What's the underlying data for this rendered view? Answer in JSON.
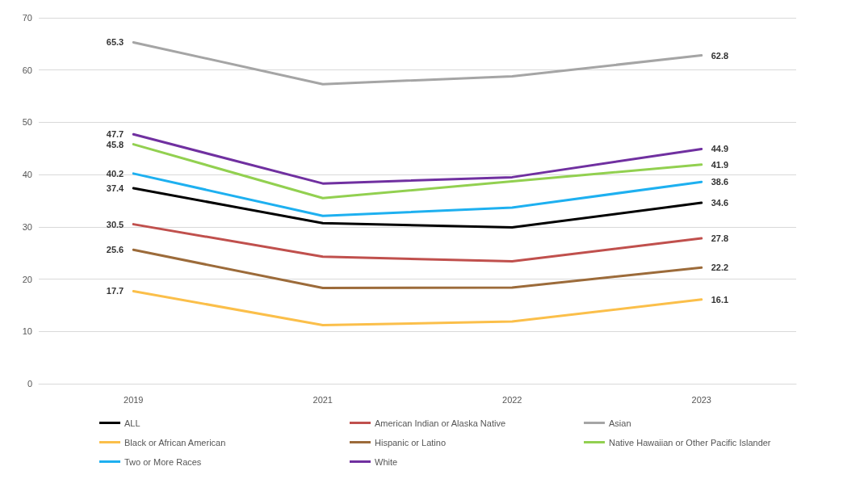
{
  "chart_data": {
    "type": "line",
    "categories": [
      "2019",
      "2021",
      "2022",
      "2023"
    ],
    "ylim": [
      0,
      70
    ],
    "yticks": [
      0,
      10,
      20,
      30,
      40,
      50,
      60,
      70
    ],
    "grid": "y",
    "legend": "bottom",
    "marker": "none",
    "line_style": "solid",
    "series": [
      {
        "name": "ALL",
        "color": "#000000",
        "values": [
          37.4,
          30.7,
          29.9,
          34.6
        ],
        "value_labels": [
          "37.4",
          null,
          null,
          "34.6"
        ]
      },
      {
        "name": "American Indian or Alaska Native",
        "color": "#c0504d",
        "values": [
          30.5,
          24.3,
          23.4,
          27.8
        ],
        "value_labels": [
          "30.5",
          null,
          null,
          "27.8"
        ]
      },
      {
        "name": "Asian",
        "color": "#a5a5a5",
        "values": [
          65.3,
          57.3,
          58.8,
          62.8
        ],
        "value_labels": [
          "65.3",
          null,
          null,
          "62.8"
        ]
      },
      {
        "name": "Black or African American",
        "color": "#fbbf4a",
        "values": [
          17.7,
          11.2,
          11.9,
          16.1
        ],
        "value_labels": [
          "17.7",
          null,
          null,
          "16.1"
        ]
      },
      {
        "name": "Hispanic or Latino",
        "color": "#9c6b3a",
        "values": [
          25.6,
          18.3,
          18.4,
          22.2
        ],
        "value_labels": [
          "25.6",
          null,
          null,
          "22.2"
        ]
      },
      {
        "name": "Native Hawaiian or Other Pacific Islander",
        "color": "#92d050",
        "values": [
          45.8,
          35.5,
          38.7,
          41.9
        ],
        "value_labels": [
          "45.8",
          null,
          null,
          "41.9"
        ]
      },
      {
        "name": "Two or More Races",
        "color": "#1eb0f0",
        "values": [
          40.2,
          32.1,
          33.7,
          38.6
        ],
        "value_labels": [
          "40.2",
          null,
          null,
          "38.6"
        ]
      },
      {
        "name": "White",
        "color": "#7030a0",
        "values": [
          47.7,
          38.3,
          39.5,
          44.9
        ],
        "value_labels": [
          "47.7",
          null,
          null,
          "44.9"
        ]
      }
    ]
  }
}
